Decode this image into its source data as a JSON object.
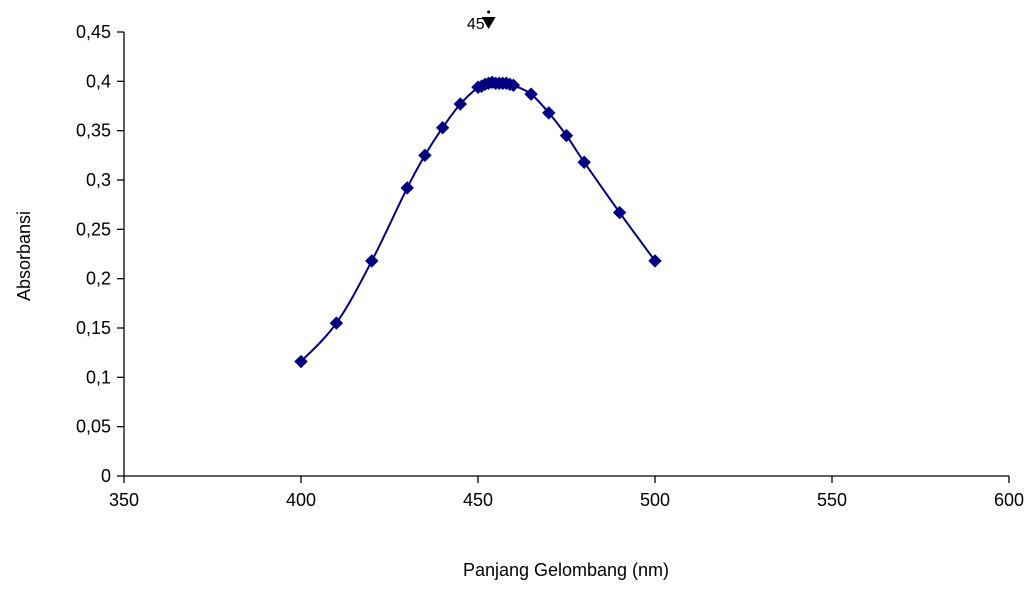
{
  "chart_data": {
    "type": "scatter",
    "title": "",
    "xlabel": "Panjang Gelombang (nm)",
    "ylabel": "Absorbansi",
    "xlim": [
      350,
      600
    ],
    "ylim": [
      0,
      0.45
    ],
    "x_ticks": [
      350,
      400,
      450,
      500,
      550,
      600
    ],
    "x_tick_labels": [
      "350",
      "400",
      "450",
      "500",
      "550",
      "600"
    ],
    "y_ticks": [
      0,
      0.05,
      0.1,
      0.15,
      0.2,
      0.25,
      0.3,
      0.35,
      0.4,
      0.45
    ],
    "y_tick_labels": [
      "0",
      "0,05",
      "0,1",
      "0,15",
      "0,2",
      "0,25",
      "0,3",
      "0,35",
      "0,4",
      "0,45"
    ],
    "grid": false,
    "legend": "none",
    "series": [
      {
        "color": "#000080",
        "marker": "diamond",
        "line": "smooth",
        "x": [
          400,
          410,
          420,
          430,
          435,
          440,
          445,
          450,
          451,
          452,
          453,
          454,
          455,
          456,
          457,
          458,
          459,
          460,
          465,
          470,
          475,
          480,
          490,
          500
        ],
        "y": [
          0.116,
          0.155,
          0.218,
          0.292,
          0.325,
          0.353,
          0.377,
          0.394,
          0.395,
          0.397,
          0.398,
          0.399,
          0.398,
          0.398,
          0.398,
          0.398,
          0.397,
          0.396,
          0.387,
          0.368,
          0.345,
          0.318,
          0.267,
          0.218
        ]
      }
    ],
    "annotations": [
      {
        "text": "45",
        "x": 453,
        "note_marker": "arrow-down"
      }
    ]
  }
}
